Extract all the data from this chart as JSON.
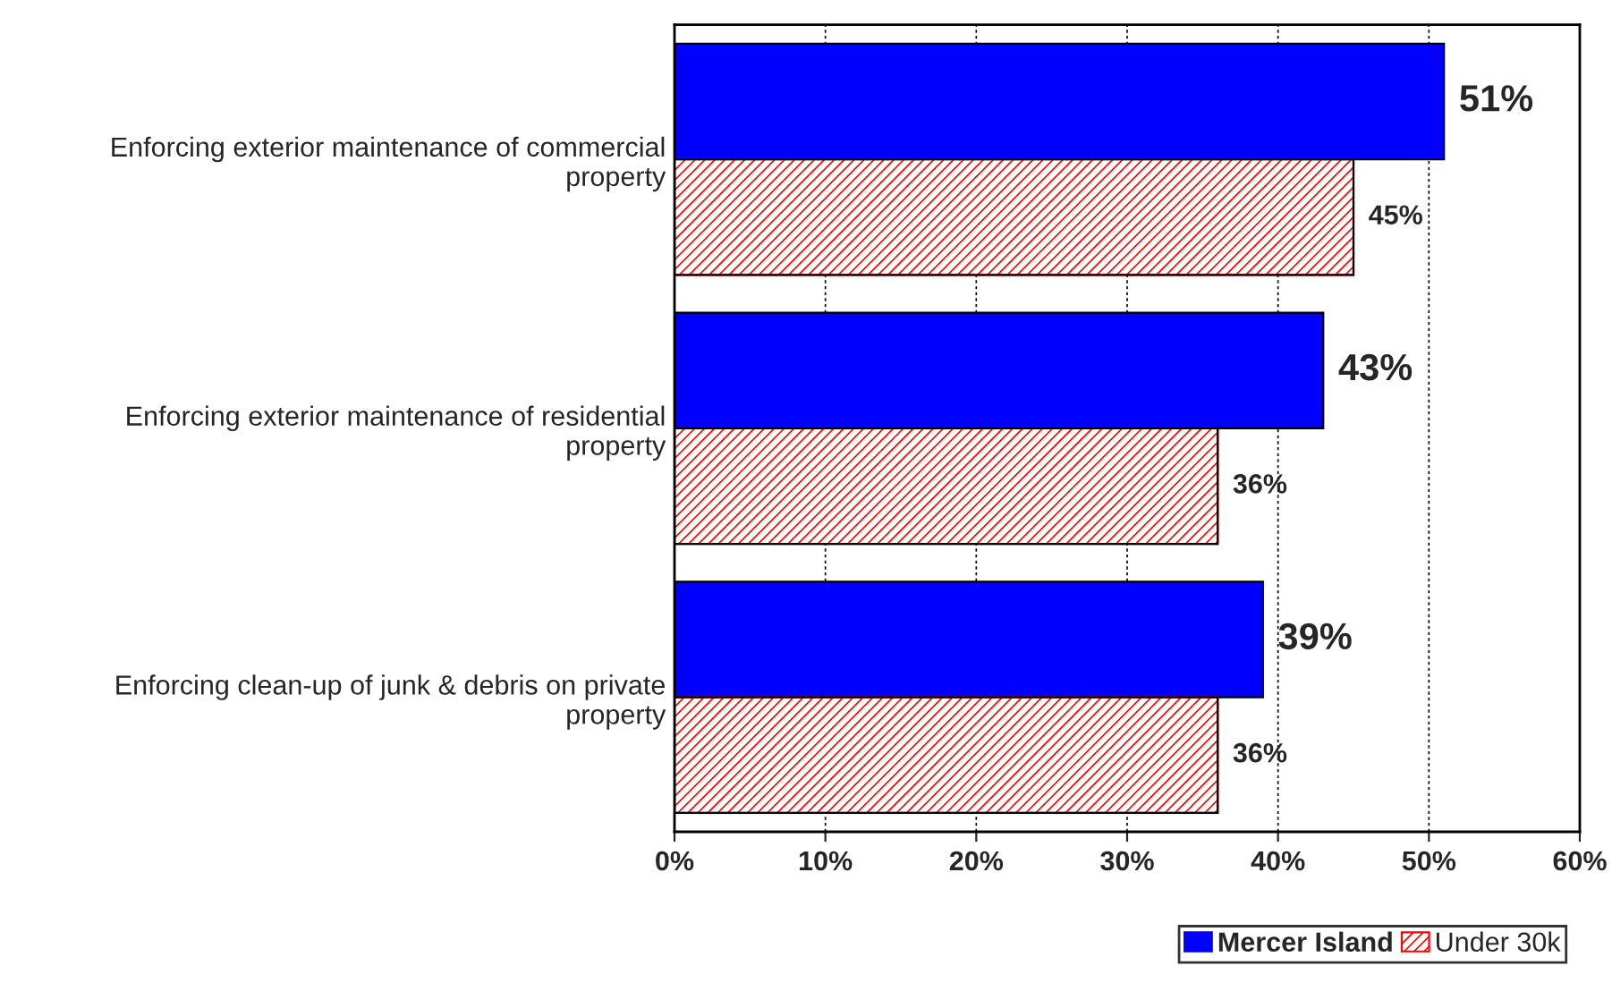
{
  "chart_data": {
    "type": "bar",
    "orientation": "horizontal",
    "categories": [
      "Enforcing exterior maintenance of commercial\nproperty",
      "Enforcing exterior maintenance of residential\nproperty",
      "Enforcing clean-up of junk & debris on private\nproperty"
    ],
    "series": [
      {
        "name": "Mercer Island",
        "color": "#0000ff",
        "values": [
          51,
          43,
          39
        ],
        "value_labels": [
          "51%",
          "43%",
          "39%"
        ]
      },
      {
        "name": "Under 30k",
        "color": "#ff0000",
        "values": [
          45,
          36,
          36
        ],
        "value_labels": [
          "45%",
          "36%",
          "36%"
        ]
      }
    ],
    "xlim": [
      0,
      60
    ],
    "xticks": [
      {
        "value": 0,
        "label": "0%"
      },
      {
        "value": 10,
        "label": "10%"
      },
      {
        "value": 20,
        "label": "20%"
      },
      {
        "value": 30,
        "label": "30%"
      },
      {
        "value": 40,
        "label": "40%"
      },
      {
        "value": 50,
        "label": "50%"
      },
      {
        "value": 60,
        "label": "60%"
      }
    ],
    "grid": "x",
    "legend": "bottom right"
  }
}
